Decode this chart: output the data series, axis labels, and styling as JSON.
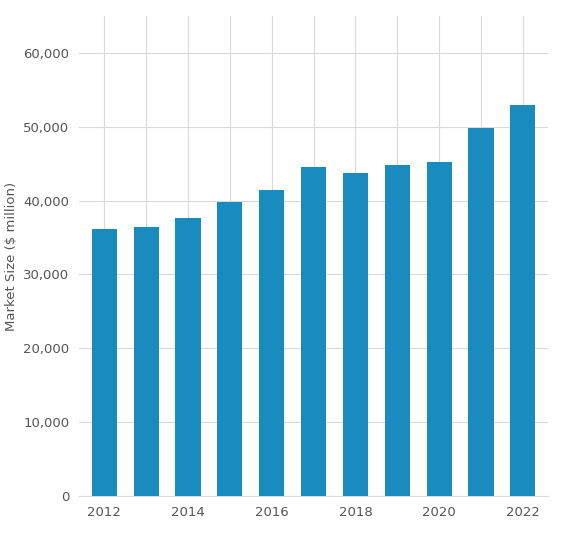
{
  "years": [
    2012,
    2013,
    2014,
    2015,
    2016,
    2017,
    2018,
    2019,
    2020,
    2021,
    2022
  ],
  "values": [
    36200,
    36500,
    37700,
    39800,
    41500,
    44500,
    43700,
    44800,
    45200,
    49800,
    53000
  ],
  "bar_color": "#1a8bbf",
  "ylabel": "Market Size ($ million)",
  "ylim": [
    0,
    65000
  ],
  "yticks": [
    0,
    10000,
    20000,
    30000,
    40000,
    50000,
    60000
  ],
  "background_color": "#ffffff",
  "grid_color": "#d9d9d9",
  "bar_width": 0.6
}
